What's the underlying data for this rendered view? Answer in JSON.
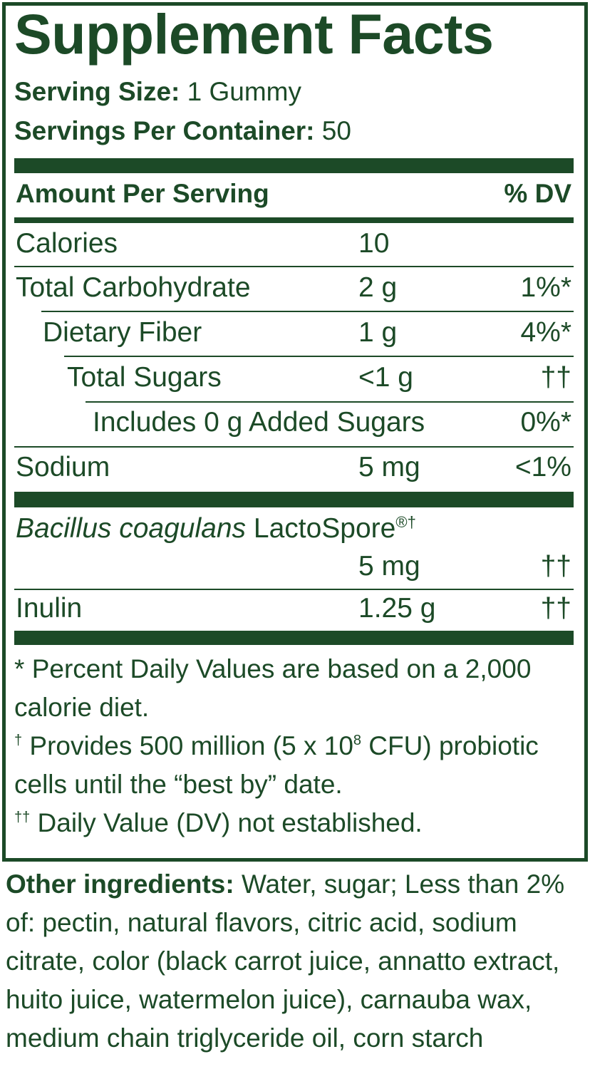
{
  "title": "Supplement Facts",
  "serving_size": {
    "label": "Serving Size:",
    "value": "1 Gummy"
  },
  "servings_per_container": {
    "label": "Servings Per Container:",
    "value": "50"
  },
  "header": {
    "amount": "Amount Per Serving",
    "dv": "% DV"
  },
  "rows": [
    {
      "name": "Calories",
      "amount": "10"
    },
    {
      "name": "Total Carbohydrate",
      "amount": "2 g",
      "dv": "1%*"
    },
    {
      "name": "Dietary Fiber",
      "amount": "1 g",
      "dv": "4%*"
    },
    {
      "name": "Total Sugars",
      "amount": "<1 g",
      "dv": "††"
    },
    {
      "name": "Includes 0 g Added Sugars",
      "dv": "0%*"
    },
    {
      "name": "Sodium",
      "amount": "5 mg",
      "dv": "<1%"
    }
  ],
  "ingredients": [
    {
      "name_italic": "Bacillus coagulans",
      "name": "LactoSpore",
      "name_sup": "®†",
      "amount": "5 mg",
      "dv": "††"
    },
    {
      "name": "Inulin",
      "amount": "1.25 g",
      "dv": "††"
    }
  ],
  "footnotes": [
    {
      "mark": "*",
      "text": "Percent Daily Values are based on a 2,000 calorie diet."
    },
    {
      "mark": "†",
      "text": "Provides 500 million (5 x 10",
      "sup": "8",
      "text_after": " CFU) probiotic cells until the “best by” date."
    },
    {
      "mark": "††",
      "text": "Daily Value (DV) not established."
    }
  ],
  "other_ingredients": {
    "label": "Other ingredients:",
    "text": "Water, sugar; Less than 2% of: pectin, natural flavors, citric acid, sodium citrate, color (black carrot juice, annatto extract, huito juice, watermelon juice), carnauba wax, medium chain triglyceride oil, corn starch"
  }
}
